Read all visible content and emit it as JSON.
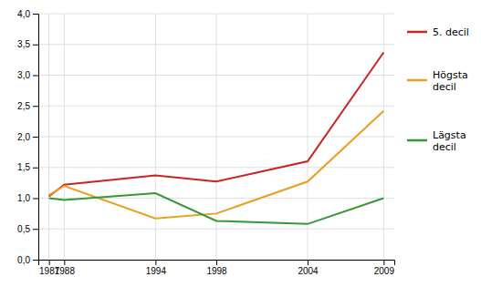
{
  "chart_data": {
    "type": "line",
    "x": [
      1987,
      1988,
      1994,
      1998,
      2004,
      2009
    ],
    "series": [
      {
        "name": "5. decil",
        "color": "#cc2222",
        "values": [
          1.03,
          1.22,
          1.37,
          1.27,
          1.6,
          3.37
        ]
      },
      {
        "name": "Högsta\ndecil",
        "color": "#e8a020",
        "values": [
          1.05,
          1.2,
          0.67,
          0.75,
          1.27,
          2.42
        ]
      },
      {
        "name": "Lägsta\ndecil",
        "color": "#339933",
        "values": [
          1.0,
          0.97,
          1.08,
          0.63,
          0.58,
          1.0
        ]
      }
    ],
    "xlim": [
      1986.3,
      2009.7
    ],
    "xticks": [
      1987,
      1988,
      1994,
      1998,
      2004,
      2009
    ],
    "ylim": [
      0.0,
      4.0
    ],
    "yticks": [
      {
        "value": 0.0,
        "label": "0,0"
      },
      {
        "value": 0.5,
        "label": "0,5"
      },
      {
        "value": 1.0,
        "label": "1,0"
      },
      {
        "value": 1.5,
        "label": "1,5"
      },
      {
        "value": 2.0,
        "label": "2,0"
      },
      {
        "value": 2.5,
        "label": "2,5"
      },
      {
        "value": 3.0,
        "label": "3,0"
      },
      {
        "value": 3.5,
        "label": "3,5"
      },
      {
        "value": 4.0,
        "label": "4,0"
      }
    ],
    "grid": true,
    "legend": "right"
  }
}
